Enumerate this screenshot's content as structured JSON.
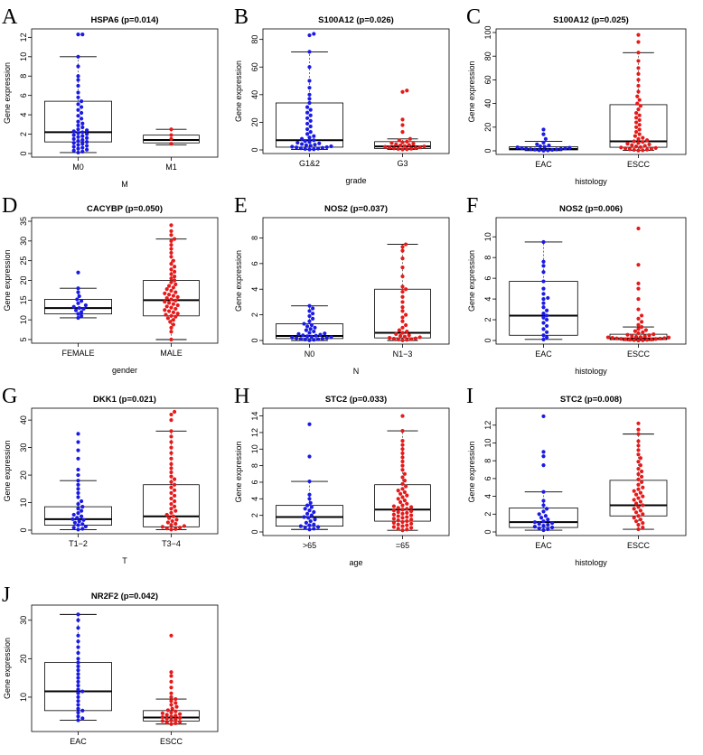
{
  "colors": {
    "group1": "#1a1ae6",
    "group2": "#e61a1a",
    "axis": "#000000"
  },
  "chart_data": [
    {
      "panel": "A",
      "type": "boxplot-beeswarm",
      "title": "HSPA6 (p=0.014)",
      "xlabel": "M",
      "ylabel": "Gene expression",
      "categories": [
        "M0",
        "M1"
      ],
      "ylim": [
        0,
        12.5
      ],
      "yticks": [
        0,
        2,
        4,
        6,
        8,
        10,
        12
      ],
      "boxes": [
        {
          "min": 0.1,
          "q1": 1.2,
          "median": 2.2,
          "q3": 5.4,
          "max": 10.0
        },
        {
          "min": 0.9,
          "q1": 1.1,
          "median": 1.4,
          "q3": 1.9,
          "max": 2.5
        }
      ],
      "points": [
        [
          0.1,
          0.2,
          0.3,
          0.4,
          0.5,
          0.6,
          0.7,
          0.8,
          0.9,
          1.0,
          1.1,
          1.2,
          1.3,
          1.4,
          1.5,
          1.6,
          1.7,
          1.8,
          1.9,
          2.0,
          2.1,
          2.2,
          2.3,
          2.4,
          2.5,
          2.7,
          2.9,
          3.1,
          3.3,
          3.6,
          3.9,
          4.2,
          4.5,
          4.8,
          5.1,
          5.4,
          5.8,
          6.3,
          7.0,
          7.6,
          8.0,
          9.0,
          10.0,
          12.3,
          12.3
        ],
        [
          1.0,
          1.5,
          1.9,
          2.5
        ]
      ]
    },
    {
      "panel": "B",
      "type": "boxplot-beeswarm",
      "title": "S100A12 (p=0.026)",
      "xlabel": "grade",
      "ylabel": "Gene expression",
      "categories": [
        "G1&2",
        "G3"
      ],
      "ylim": [
        0,
        85
      ],
      "yticks": [
        0,
        20,
        40,
        60,
        80
      ],
      "boxes": [
        {
          "min": 0.3,
          "q1": 2.0,
          "median": 7.0,
          "q3": 34.0,
          "max": 71.0
        },
        {
          "min": 0.3,
          "q1": 1.0,
          "median": 2.5,
          "q3": 6.0,
          "max": 8.0
        }
      ],
      "points": [
        [
          0.3,
          0.5,
          0.7,
          1.0,
          1.2,
          1.5,
          1.8,
          2.0,
          2.3,
          2.6,
          3.0,
          3.4,
          3.8,
          4.2,
          4.7,
          5.2,
          5.8,
          6.4,
          7.0,
          8.0,
          9.0,
          10.0,
          11.5,
          13.0,
          15.0,
          17.0,
          19.0,
          21.0,
          23.0,
          25.0,
          27.0,
          29.0,
          31.0,
          34.0,
          37.0,
          40.0,
          45.0,
          50.0,
          60.0,
          71.0,
          83.0,
          84.0
        ],
        [
          0.3,
          0.5,
          0.7,
          0.9,
          1.1,
          1.3,
          1.6,
          1.9,
          2.2,
          2.5,
          2.8,
          3.2,
          3.6,
          4.0,
          4.5,
          5.0,
          5.5,
          6.0,
          7.0,
          8.0,
          13.0,
          18.0,
          22.0,
          42.0,
          43.0
        ]
      ]
    },
    {
      "panel": "C",
      "type": "boxplot-beeswarm",
      "title": "S100A12 (p=0.025)",
      "xlabel": "histology",
      "ylabel": "Gene expression",
      "categories": [
        "EAC",
        "ESCC"
      ],
      "ylim": [
        0,
        100
      ],
      "yticks": [
        0,
        20,
        40,
        60,
        80,
        100
      ],
      "boxes": [
        {
          "min": 0.2,
          "q1": 0.8,
          "median": 1.5,
          "q3": 3.5,
          "max": 8.0
        },
        {
          "min": 0.3,
          "q1": 3.0,
          "median": 8.0,
          "q3": 39.0,
          "max": 83.0
        }
      ],
      "points": [
        [
          0.2,
          0.4,
          0.6,
          0.8,
          1.0,
          1.2,
          1.4,
          1.6,
          1.8,
          2.0,
          2.3,
          2.6,
          3.0,
          3.4,
          3.8,
          4.5,
          5.5,
          7.0,
          10.0,
          14.0,
          18.0
        ],
        [
          0.3,
          0.5,
          0.8,
          1.0,
          1.3,
          1.6,
          2.0,
          2.4,
          2.8,
          3.2,
          3.7,
          4.2,
          4.8,
          5.4,
          6.0,
          6.7,
          7.5,
          8.0,
          9.0,
          10.0,
          11.0,
          12.5,
          14.0,
          16.0,
          18.0,
          20.0,
          22.0,
          24.0,
          26.0,
          28.0,
          30.0,
          32.0,
          35.0,
          38.0,
          40.0,
          43.0,
          46.0,
          50.0,
          55.0,
          60.0,
          65.0,
          70.0,
          76.0,
          83.0,
          92.0,
          98.0
        ]
      ]
    },
    {
      "panel": "D",
      "type": "boxplot-beeswarm",
      "title": "CACYBP (p=0.050)",
      "xlabel": "gender",
      "ylabel": "Gene expression",
      "categories": [
        "FEMALE",
        "MALE"
      ],
      "ylim": [
        5,
        35
      ],
      "yticks": [
        5,
        10,
        15,
        20,
        25,
        30,
        35
      ],
      "boxes": [
        {
          "min": 10.5,
          "q1": 11.5,
          "median": 13.0,
          "q3": 15.2,
          "max": 18.0
        },
        {
          "min": 5.0,
          "q1": 11.0,
          "median": 15.0,
          "q3": 20.0,
          "max": 30.5
        }
      ],
      "points": [
        [
          10.5,
          11.0,
          11.5,
          12.0,
          12.4,
          12.8,
          13.0,
          13.3,
          13.7,
          14.2,
          14.8,
          15.2,
          16.0,
          17.0,
          18.0,
          22.0
        ],
        [
          5.0,
          7.0,
          8.0,
          8.8,
          9.5,
          10.0,
          10.4,
          10.8,
          11.0,
          11.3,
          11.6,
          11.9,
          12.2,
          12.5,
          12.8,
          13.1,
          13.4,
          13.7,
          14.0,
          14.3,
          14.6,
          14.9,
          15.2,
          15.5,
          15.8,
          16.1,
          16.4,
          16.7,
          17.0,
          17.4,
          17.8,
          18.2,
          18.6,
          19.0,
          19.5,
          20.0,
          20.5,
          21.0,
          21.6,
          22.2,
          22.8,
          23.5,
          24.2,
          25.0,
          26.0,
          27.0,
          28.0,
          29.0,
          30.0,
          30.5,
          31.5,
          32.5,
          34.0
        ]
      ]
    },
    {
      "panel": "E",
      "type": "boxplot-beeswarm",
      "title": "NOS2 (p=0.037)",
      "xlabel": "N",
      "ylabel": "Gene expression",
      "categories": [
        "N0",
        "N1−3"
      ],
      "ylim": [
        0,
        9.3
      ],
      "yticks": [
        0,
        2,
        4,
        6,
        8
      ],
      "boxes": [
        {
          "min": 0.0,
          "q1": 0.15,
          "median": 0.35,
          "q3": 1.3,
          "max": 2.7
        },
        {
          "min": 0.0,
          "q1": 0.2,
          "median": 0.6,
          "q3": 4.0,
          "max": 7.5
        }
      ],
      "points": [
        [
          0.02,
          0.05,
          0.08,
          0.1,
          0.12,
          0.15,
          0.18,
          0.2,
          0.23,
          0.26,
          0.3,
          0.33,
          0.37,
          0.4,
          0.45,
          0.5,
          0.55,
          0.6,
          0.7,
          0.8,
          0.9,
          1.0,
          1.1,
          1.2,
          1.3,
          1.5,
          1.7,
          1.9,
          2.1,
          2.3,
          2.5,
          2.7
        ],
        [
          0.02,
          0.05,
          0.08,
          0.1,
          0.13,
          0.16,
          0.2,
          0.25,
          0.3,
          0.35,
          0.4,
          0.5,
          0.6,
          0.7,
          0.8,
          1.0,
          1.2,
          1.5,
          1.8,
          2.0,
          2.3,
          2.6,
          3.0,
          3.4,
          3.8,
          4.0,
          4.2,
          5.0,
          5.7,
          6.4,
          7.0,
          7.3,
          7.5
        ]
      ]
    },
    {
      "panel": "F",
      "type": "boxplot-beeswarm",
      "title": "NOS2 (p=0.006)",
      "xlabel": "histology",
      "ylabel": "Gene expression",
      "categories": [
        "EAC",
        "ESCC"
      ],
      "ylim": [
        0,
        11.5
      ],
      "yticks": [
        0,
        2,
        4,
        6,
        8,
        10
      ],
      "boxes": [
        {
          "min": 0.1,
          "q1": 0.5,
          "median": 2.4,
          "q3": 5.7,
          "max": 9.5
        },
        {
          "min": 0.0,
          "q1": 0.08,
          "median": 0.2,
          "q3": 0.6,
          "max": 1.3
        }
      ],
      "points": [
        [
          0.1,
          0.3,
          0.5,
          0.8,
          1.1,
          1.4,
          1.7,
          2.0,
          2.2,
          2.4,
          2.6,
          2.9,
          3.2,
          3.6,
          4.0,
          4.1,
          4.5,
          5.0,
          5.7,
          6.6,
          7.2,
          7.6,
          9.5
        ],
        [
          0.0,
          0.02,
          0.04,
          0.06,
          0.08,
          0.1,
          0.12,
          0.14,
          0.16,
          0.18,
          0.2,
          0.22,
          0.25,
          0.28,
          0.3,
          0.33,
          0.36,
          0.4,
          0.45,
          0.5,
          0.55,
          0.6,
          0.7,
          0.8,
          0.9,
          1.0,
          1.1,
          1.3,
          1.5,
          1.8,
          2.1,
          2.4,
          3.0,
          4.0,
          5.0,
          5.5,
          7.3,
          10.8
        ]
      ]
    },
    {
      "panel": "G",
      "type": "boxplot-beeswarm",
      "title": "DKK1 (p=0.021)",
      "xlabel": "T",
      "ylabel": "Gene expression",
      "categories": [
        "T1−2",
        "T3−4"
      ],
      "ylim": [
        0,
        43
      ],
      "yticks": [
        0,
        10,
        20,
        30,
        40
      ],
      "boxes": [
        {
          "min": 0.2,
          "q1": 1.8,
          "median": 4.0,
          "q3": 8.5,
          "max": 18.0
        },
        {
          "min": 0.2,
          "q1": 1.2,
          "median": 5.0,
          "q3": 16.5,
          "max": 36.0
        }
      ],
      "points": [
        [
          0.2,
          0.5,
          0.9,
          1.3,
          1.8,
          2.2,
          2.7,
          3.2,
          3.7,
          4.0,
          4.5,
          5.0,
          5.6,
          6.2,
          7.0,
          7.8,
          8.5,
          9.5,
          10.5,
          12.0,
          13.5,
          15.0,
          16.5,
          18.0,
          20.0,
          22.0,
          26.0,
          29.0,
          32.0,
          35.0
        ],
        [
          0.2,
          0.4,
          0.6,
          0.9,
          1.2,
          1.5,
          1.9,
          2.3,
          2.8,
          3.3,
          3.8,
          4.4,
          5.0,
          5.6,
          6.3,
          7.0,
          7.8,
          8.6,
          9.5,
          10.5,
          11.5,
          12.5,
          13.5,
          14.5,
          15.5,
          16.5,
          17.5,
          18.5,
          19.5,
          21.0,
          22.5,
          24.0,
          26.0,
          28.0,
          30.0,
          32.0,
          34.0,
          36.0,
          40.0,
          42.0,
          43.0
        ]
      ]
    },
    {
      "panel": "H",
      "type": "boxplot-beeswarm",
      "title": "STC2 (p=0.033)",
      "xlabel": "age",
      "ylabel": "Gene expression",
      "categories": [
        ">65",
        "=65"
      ],
      "ylim": [
        0,
        14.5
      ],
      "yticks": [
        0,
        2,
        4,
        6,
        8,
        10,
        12,
        14
      ],
      "boxes": [
        {
          "min": 0.3,
          "q1": 0.7,
          "median": 1.8,
          "q3": 3.2,
          "max": 6.1
        },
        {
          "min": 0.2,
          "q1": 1.3,
          "median": 2.7,
          "q3": 5.7,
          "max": 12.2
        }
      ],
      "points": [
        [
          0.3,
          0.4,
          0.5,
          0.6,
          0.7,
          0.8,
          0.9,
          1.1,
          1.3,
          1.5,
          1.7,
          1.8,
          2.0,
          2.2,
          2.4,
          2.6,
          2.8,
          3.0,
          3.2,
          3.5,
          4.0,
          4.5,
          6.1,
          9.1,
          13.0
        ],
        [
          0.2,
          0.3,
          0.4,
          0.5,
          0.6,
          0.7,
          0.8,
          0.9,
          1.0,
          1.1,
          1.2,
          1.3,
          1.4,
          1.5,
          1.6,
          1.7,
          1.8,
          1.9,
          2.0,
          2.1,
          2.2,
          2.3,
          2.4,
          2.5,
          2.6,
          2.7,
          2.8,
          2.9,
          3.0,
          3.1,
          3.2,
          3.4,
          3.6,
          3.8,
          4.0,
          4.2,
          4.4,
          4.6,
          4.8,
          5.0,
          5.2,
          5.5,
          5.8,
          6.2,
          6.6,
          7.0,
          7.5,
          8.0,
          8.5,
          9.0,
          9.5,
          10.0,
          10.5,
          11.0,
          12.2,
          14.0
        ]
      ]
    },
    {
      "panel": "I",
      "type": "boxplot-beeswarm",
      "title": "STC2 (p=0.008)",
      "xlabel": "histology",
      "ylabel": "Gene expression",
      "categories": [
        "EAC",
        "ESCC"
      ],
      "ylim": [
        0,
        13.5
      ],
      "yticks": [
        0,
        2,
        4,
        6,
        8,
        10,
        12
      ],
      "boxes": [
        {
          "min": 0.2,
          "q1": 0.5,
          "median": 1.1,
          "q3": 2.7,
          "max": 4.5
        },
        {
          "min": 0.3,
          "q1": 1.8,
          "median": 3.0,
          "q3": 5.8,
          "max": 11.0
        }
      ],
      "points": [
        [
          0.2,
          0.3,
          0.4,
          0.5,
          0.6,
          0.7,
          0.8,
          0.9,
          1.0,
          1.1,
          1.2,
          1.4,
          1.6,
          1.8,
          2.0,
          2.3,
          2.6,
          3.0,
          3.5,
          4.5,
          7.5,
          8.5,
          9.0,
          13.0
        ],
        [
          0.3,
          0.5,
          0.8,
          1.0,
          1.2,
          1.4,
          1.6,
          1.8,
          2.0,
          2.2,
          2.4,
          2.6,
          2.8,
          3.0,
          3.2,
          3.4,
          3.6,
          3.8,
          4.0,
          4.2,
          4.4,
          4.6,
          4.8,
          5.0,
          5.3,
          5.6,
          5.9,
          6.2,
          6.5,
          6.8,
          7.1,
          7.5,
          7.9,
          8.3,
          8.7,
          9.2,
          9.7,
          10.2,
          11.0,
          11.5,
          12.2
        ]
      ]
    },
    {
      "panel": "J",
      "type": "boxplot-beeswarm",
      "title": "NR2F2 (p=0.042)",
      "xlabel": "histology",
      "ylabel": "Gene expression",
      "categories": [
        "EAC",
        "ESCC"
      ],
      "ylim": [
        2,
        33
      ],
      "yticks": [
        10,
        20,
        30
      ],
      "boxes": [
        {
          "min": 4.0,
          "q1": 6.5,
          "median": 11.5,
          "q3": 19.0,
          "max": 31.5
        },
        {
          "min": 3.0,
          "q1": 3.8,
          "median": 4.7,
          "q3": 6.5,
          "max": 9.5
        }
      ],
      "points": [
        [
          4.0,
          4.5,
          5.0,
          6.0,
          6.5,
          7.0,
          8.0,
          9.0,
          10.0,
          11.0,
          11.5,
          12.0,
          13.0,
          14.0,
          15.0,
          16.0,
          17.0,
          18.0,
          19.0,
          20.0,
          21.5,
          23.0,
          24.5,
          26.0,
          28.0,
          30.0,
          31.5
        ],
        [
          3.0,
          3.2,
          3.4,
          3.6,
          3.8,
          4.0,
          4.2,
          4.4,
          4.6,
          4.8,
          5.0,
          5.2,
          5.4,
          5.6,
          5.8,
          6.0,
          6.3,
          6.6,
          7.0,
          7.5,
          8.0,
          8.5,
          9.0,
          9.5,
          10.0,
          11.0,
          12.5,
          14.0,
          15.5,
          16.5,
          26.0
        ]
      ]
    }
  ]
}
